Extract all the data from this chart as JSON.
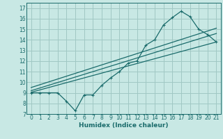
{
  "bg_color": "#c8e8e4",
  "grid_color": "#a0c8c4",
  "line_color": "#1a6b6b",
  "xlabel": "Humidex (Indice chaleur)",
  "xlim": [
    -0.5,
    21.5
  ],
  "ylim": [
    7,
    17.5
  ],
  "xticks": [
    0,
    1,
    2,
    3,
    4,
    5,
    6,
    7,
    8,
    9,
    10,
    11,
    12,
    13,
    14,
    15,
    16,
    17,
    18,
    19,
    20,
    21
  ],
  "yticks": [
    7,
    8,
    9,
    10,
    11,
    12,
    13,
    14,
    15,
    16,
    17
  ],
  "line1_x": [
    0,
    1,
    2,
    3,
    4,
    5,
    6,
    7,
    8,
    9,
    10,
    11,
    12,
    13,
    14,
    15,
    16,
    17,
    18,
    19,
    20,
    21
  ],
  "line1_y": [
    9.0,
    9.0,
    9.0,
    9.0,
    8.2,
    7.3,
    8.8,
    8.8,
    9.7,
    10.4,
    11.0,
    11.8,
    12.0,
    13.5,
    14.0,
    15.4,
    16.1,
    16.7,
    16.2,
    15.0,
    14.5,
    13.8
  ],
  "line2_x": [
    0,
    21
  ],
  "line2_y": [
    9.05,
    13.8
  ],
  "line3_x": [
    0,
    21
  ],
  "line3_y": [
    9.2,
    14.6
  ],
  "line4_x": [
    0,
    21
  ],
  "line4_y": [
    9.5,
    15.1
  ],
  "tick_fontsize": 5.5,
  "xlabel_fontsize": 6.5,
  "lw": 0.9
}
